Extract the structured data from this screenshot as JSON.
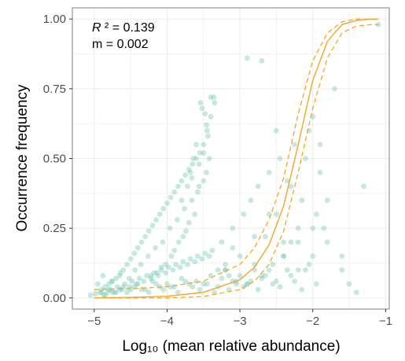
{
  "chart_data": {
    "type": "scatter",
    "xlabel": "Log₁₀ (mean relative abundance)",
    "ylabel": "Occurrence frequency",
    "xlim": [
      -5.3,
      -0.95
    ],
    "ylim": [
      -0.04,
      1.04
    ],
    "xticks": [
      -5,
      -4,
      -3,
      -2,
      -1
    ],
    "xtick_labels": [
      "−5",
      "−4",
      "−3",
      "−2",
      "−1"
    ],
    "yticks": [
      0,
      0.25,
      0.5,
      0.75,
      1
    ],
    "ytick_labels": [
      "0.00",
      "0.25",
      "0.50",
      "0.75",
      "1.00"
    ],
    "grid": true,
    "annotations": {
      "r2_label": "R",
      "r2_value": " ² = 0.139",
      "m_text": "m = 0.002"
    },
    "colors": {
      "points": "#7fcdbb",
      "fit": "#f5a623",
      "grid": "#ebebeb",
      "panel_border": "#7f7f7f"
    },
    "fit_curve": {
      "x": [
        -5.0,
        -4.5,
        -4.0,
        -3.5,
        -3.0,
        -2.8,
        -2.6,
        -2.4,
        -2.2,
        -2.0,
        -1.8,
        -1.6,
        -1.4,
        -1.2,
        -1.1
      ],
      "y": [
        0.0,
        0.002,
        0.006,
        0.02,
        0.065,
        0.11,
        0.19,
        0.33,
        0.55,
        0.78,
        0.92,
        0.98,
        0.995,
        1.0,
        1.0
      ],
      "upper": [
        0.03,
        0.033,
        0.04,
        0.06,
        0.12,
        0.18,
        0.28,
        0.43,
        0.66,
        0.85,
        0.95,
        0.99,
        1.0,
        1.0,
        1.0
      ],
      "lower": [
        0.0,
        0.0,
        0.0,
        0.005,
        0.03,
        0.06,
        0.12,
        0.24,
        0.45,
        0.68,
        0.86,
        0.95,
        0.975,
        0.98,
        0.98
      ]
    },
    "points": {
      "x": [
        -5.05,
        -4.98,
        -4.92,
        -4.9,
        -4.87,
        -4.85,
        -4.82,
        -4.8,
        -4.78,
        -4.75,
        -4.72,
        -4.7,
        -4.68,
        -4.65,
        -4.62,
        -4.6,
        -4.58,
        -4.55,
        -4.52,
        -4.5,
        -4.48,
        -4.45,
        -4.42,
        -4.4,
        -4.38,
        -4.35,
        -4.32,
        -4.3,
        -4.28,
        -4.25,
        -4.22,
        -4.2,
        -4.18,
        -4.15,
        -4.12,
        -4.1,
        -4.08,
        -4.05,
        -4.02,
        -4.0,
        -3.98,
        -3.95,
        -3.92,
        -3.9,
        -3.88,
        -3.85,
        -3.82,
        -3.8,
        -3.78,
        -3.75,
        -3.72,
        -3.7,
        -3.68,
        -3.65,
        -3.62,
        -3.6,
        -3.58,
        -3.55,
        -3.52,
        -3.5,
        -3.48,
        -3.45,
        -3.42,
        -3.4,
        -3.38,
        -3.35,
        -3.3,
        -3.25,
        -3.2,
        -3.15,
        -3.1,
        -3.05,
        -3.0,
        -2.95,
        -2.9,
        -2.85,
        -2.8,
        -2.75,
        -2.7,
        -2.65,
        -2.6,
        -2.55,
        -2.5,
        -2.45,
        -2.4,
        -2.35,
        -2.3,
        -2.25,
        -2.2,
        -2.15,
        -2.1,
        -2.05,
        -2.0,
        -1.95,
        -1.9,
        -1.85,
        -1.8,
        -1.7,
        -1.6,
        -1.5,
        -1.3,
        -1.1,
        -4.9,
        -4.8,
        -4.7,
        -4.6,
        -4.5,
        -4.4,
        -4.3,
        -4.2,
        -4.1,
        -4.0,
        -3.9,
        -3.8,
        -3.7,
        -3.6,
        -3.5,
        -3.4,
        -3.3,
        -3.2,
        -3.1,
        -3.0,
        -2.9,
        -2.8,
        -2.7,
        -2.6,
        -2.5,
        -2.4,
        -2.3,
        -2.2,
        -2.1,
        -2.0,
        -4.85,
        -4.75,
        -4.65,
        -4.55,
        -4.45,
        -4.35,
        -4.25,
        -4.15,
        -4.05,
        -3.95,
        -3.85,
        -3.75,
        -3.65,
        -3.55,
        -3.45,
        -3.35,
        -3.25,
        -3.15,
        -3.05,
        -2.95,
        -2.85,
        -2.75,
        -2.65,
        -2.55,
        -2.45,
        -2.35,
        -2.25,
        -2.15,
        -2.05,
        -1.95,
        -4.95,
        -4.88,
        -4.76,
        -4.64,
        -4.52,
        -4.44,
        -4.36,
        -4.26,
        -4.16,
        -4.06,
        -3.96,
        -3.86,
        -3.76,
        -3.66,
        -3.56,
        -3.46,
        -3.42,
        -3.5,
        -3.58,
        -3.62,
        -3.7,
        -3.74,
        -3.78,
        -3.84,
        -3.9,
        -3.94,
        -4.02,
        -4.08,
        -4.14,
        -4.22,
        -3.44,
        -3.46,
        -3.48,
        -3.52,
        -3.54,
        -3.4,
        -3.6,
        -3.64,
        -3.68,
        -3.72,
        -3.36,
        -3.5,
        -3.56,
        -3.8,
        -3.66,
        -2.9,
        -2.7,
        -2.5,
        -2.3,
        -2.0,
        -1.9,
        -1.8,
        -1.6,
        -2.6,
        -2.4,
        -2.2,
        -3.1,
        -3.2,
        -2.8,
        -1.4
      ],
      "y": [
        0.01,
        0.015,
        0.02,
        0.03,
        0.01,
        0.04,
        0.02,
        0.05,
        0.03,
        0.06,
        0.02,
        0.07,
        0.04,
        0.08,
        0.03,
        0.1,
        0.05,
        0.12,
        0.04,
        0.14,
        0.06,
        0.16,
        0.05,
        0.18,
        0.07,
        0.2,
        0.06,
        0.22,
        0.08,
        0.24,
        0.07,
        0.26,
        0.09,
        0.28,
        0.08,
        0.3,
        0.1,
        0.32,
        0.09,
        0.34,
        0.11,
        0.36,
        0.1,
        0.38,
        0.12,
        0.4,
        0.11,
        0.42,
        0.13,
        0.44,
        0.12,
        0.46,
        0.14,
        0.48,
        0.13,
        0.5,
        0.15,
        0.52,
        0.14,
        0.55,
        0.16,
        0.6,
        0.15,
        0.65,
        0.17,
        0.7,
        0.1,
        0.2,
        0.12,
        0.08,
        0.25,
        0.06,
        0.15,
        0.3,
        0.05,
        0.35,
        0.1,
        0.4,
        0.08,
        0.22,
        0.45,
        0.12,
        0.3,
        0.5,
        0.15,
        0.42,
        0.2,
        0.55,
        0.1,
        0.35,
        0.5,
        0.6,
        0.15,
        0.3,
        0.45,
        0.25,
        0.2,
        0.75,
        0.1,
        0.05,
        0.4,
        0.98,
        0.02,
        0.03,
        0.02,
        0.04,
        0.03,
        0.05,
        0.03,
        0.06,
        0.04,
        0.05,
        0.04,
        0.07,
        0.05,
        0.06,
        0.05,
        0.08,
        0.04,
        0.1,
        0.06,
        0.08,
        0.05,
        0.12,
        0.07,
        0.1,
        0.06,
        0.15,
        0.08,
        0.2,
        0.1,
        0.25,
        0.01,
        0.02,
        0.03,
        0.02,
        0.04,
        0.03,
        0.02,
        0.05,
        0.03,
        0.04,
        0.02,
        0.06,
        0.04,
        0.03,
        0.05,
        0.02,
        0.07,
        0.03,
        0.05,
        0.04,
        0.06,
        0.03,
        0.08,
        0.05,
        0.04,
        0.1,
        0.06,
        0.03,
        0.12,
        0.05,
        0.05,
        0.08,
        0.06,
        0.09,
        0.07,
        0.1,
        0.12,
        0.15,
        0.18,
        0.2,
        0.25,
        0.28,
        0.32,
        0.35,
        0.4,
        0.45,
        0.5,
        0.42,
        0.38,
        0.3,
        0.27,
        0.24,
        0.22,
        0.2,
        0.17,
        0.15,
        0.12,
        0.11,
        0.09,
        0.08,
        0.58,
        0.62,
        0.66,
        0.68,
        0.7,
        0.72,
        0.55,
        0.5,
        0.45,
        0.4,
        0.72,
        0.52,
        0.48,
        0.35,
        0.43,
        0.86,
        0.85,
        0.6,
        0.4,
        0.65,
        0.55,
        0.35,
        0.15,
        0.3,
        0.2,
        0.25,
        0.18,
        0.1,
        0.22,
        0.02
      ]
    }
  }
}
